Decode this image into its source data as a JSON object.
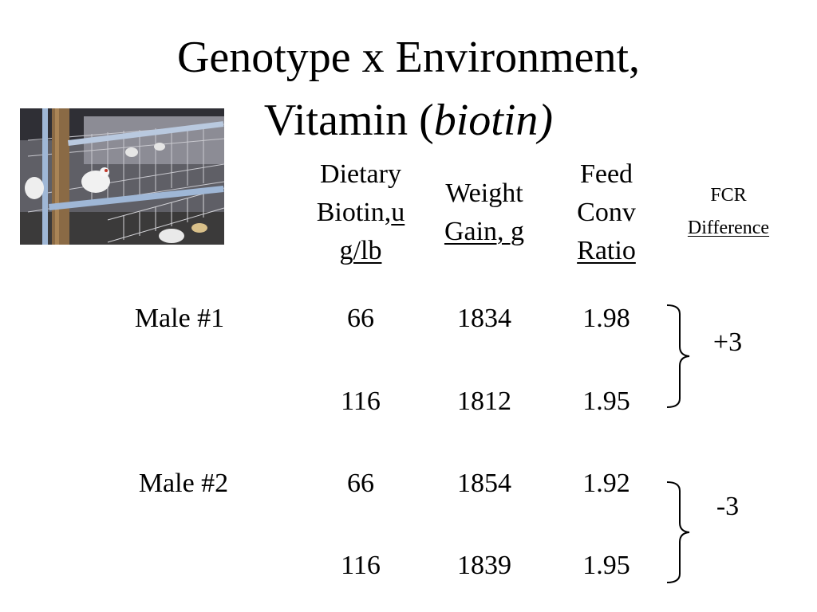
{
  "title": {
    "line1": "Genotype x Environment,",
    "line2_prefix": "Vitamin (",
    "line2_italic": "biotin)"
  },
  "photo": {
    "icon": "poultry-cages-photo"
  },
  "headers": {
    "biotin": {
      "line1": "Dietary",
      "line2a": "Biotin,",
      "line2b": "u",
      "line3": "g/lb"
    },
    "weight": {
      "line1": "Weight",
      "line2": "Gain, g"
    },
    "fcr": {
      "line1": "Feed",
      "line2": "Conv",
      "line3": "Ratio"
    },
    "diff": {
      "line1": "FCR",
      "line2": "Difference"
    }
  },
  "rows": [
    {
      "label": "Male #1",
      "biotin": "66",
      "weight": "1834",
      "fcr": "1.98"
    },
    {
      "label": "",
      "biotin": "116",
      "weight": "1812",
      "fcr": "1.95"
    },
    {
      "label": "Male #2",
      "biotin": "66",
      "weight": "1854",
      "fcr": "1.92"
    },
    {
      "label": "",
      "biotin": "116",
      "weight": "1839",
      "fcr": "1.95"
    }
  ],
  "differences": [
    "+3",
    "-3"
  ]
}
